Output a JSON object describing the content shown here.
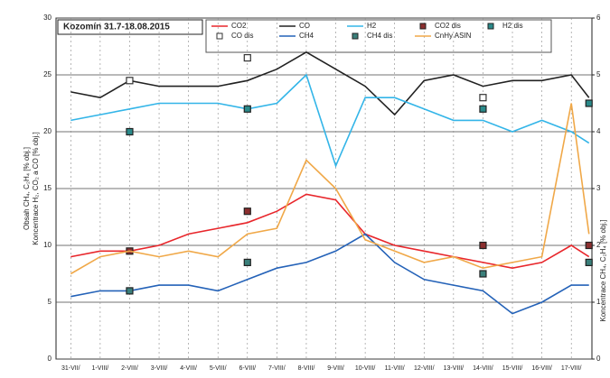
{
  "chart_data": {
    "type": "line",
    "title": "Kozomín 31.7-18.08.2015",
    "ylabel": "Koncentrace H₂, CO₂ a CO [% obj.]",
    "ylabel2": "Obsah CH₄, C₂H₄ [% obj.]",
    "y2label": "Koncentrace CH₄, C₂H₄ [% obj.]",
    "x": [
      0,
      1,
      2,
      3,
      4,
      5,
      6,
      7,
      8,
      9,
      10,
      11,
      12,
      13,
      14,
      15,
      16,
      17,
      17.6
    ],
    "xlim": [
      -0.5,
      17.7
    ],
    "xticks": [
      {
        "value": 0,
        "label": "31-VII/"
      },
      {
        "value": 1,
        "label": "1-VIII/"
      },
      {
        "value": 2,
        "label": "2-VIII/"
      },
      {
        "value": 3,
        "label": "3-VIII/"
      },
      {
        "value": 4,
        "label": "4-VIII/"
      },
      {
        "value": 5,
        "label": "5-VIII/"
      },
      {
        "value": 6,
        "label": "6-VIII/"
      },
      {
        "value": 7,
        "label": "7-VIII/"
      },
      {
        "value": 8,
        "label": "8-VIII/"
      },
      {
        "value": 9,
        "label": "9-VIII/"
      },
      {
        "value": 10,
        "label": "10-VIII/"
      },
      {
        "value": 11,
        "label": "11-VIII/"
      },
      {
        "value": 12,
        "label": "12-VIII/"
      },
      {
        "value": 13,
        "label": "13-VIII/"
      },
      {
        "value": 14,
        "label": "14-VIII/"
      },
      {
        "value": 15,
        "label": "15-VIII/"
      },
      {
        "value": 16,
        "label": "16-VIII/"
      },
      {
        "value": 17,
        "label": "17-VIII/"
      }
    ],
    "ylim": [
      0,
      30
    ],
    "yticks": [
      0,
      5,
      10,
      15,
      20,
      25,
      30
    ],
    "y2lim": [
      0,
      6
    ],
    "y2ticks": [
      0,
      1,
      2,
      3,
      4,
      5,
      6
    ],
    "grid": true,
    "series": [
      {
        "name": "CO2",
        "color": "#e8262b",
        "values": [
          9,
          9.5,
          9.5,
          10,
          11,
          11.5,
          12,
          13,
          14.5,
          14,
          11,
          10,
          9.5,
          9,
          8.5,
          8,
          8.5,
          10,
          9
        ]
      },
      {
        "name": "CO",
        "color": "#222222",
        "values": [
          23.5,
          23,
          24.5,
          24,
          24,
          24,
          24.5,
          25.5,
          27,
          25.5,
          24,
          21.5,
          24.5,
          25,
          24,
          24.5,
          24.5,
          25,
          23
        ]
      },
      {
        "name": "H2",
        "color": "#33b5e8",
        "values": [
          21,
          21.5,
          22,
          22.5,
          22.5,
          22.5,
          22,
          22.5,
          25,
          17,
          23,
          23,
          22,
          21,
          21,
          20,
          21,
          20,
          19
        ]
      },
      {
        "name": "CO2 dis",
        "color": "#8b2f2f",
        "marker": "square",
        "x": [
          2,
          6,
          14,
          17.6
        ],
        "values": [
          9.5,
          13,
          10,
          10
        ]
      },
      {
        "name": "H2 dis",
        "color": "#2a8a8a",
        "marker": "square",
        "x": [
          2,
          6,
          14,
          17.6
        ],
        "values": [
          20,
          22,
          22,
          22.5
        ]
      },
      {
        "name": "CO dis",
        "color": "#333333",
        "marker": "open-square",
        "x": [
          2,
          6,
          14
        ],
        "values": [
          24.5,
          26.5,
          23
        ]
      },
      {
        "name": "CH4",
        "color": "#2462b8",
        "axis": "y2",
        "values": [
          1.1,
          1.2,
          1.2,
          1.3,
          1.3,
          1.2,
          1.4,
          1.6,
          1.7,
          1.9,
          2.2,
          1.7,
          1.4,
          1.3,
          1.2,
          0.8,
          1,
          1.3,
          1.3
        ]
      },
      {
        "name": "CH4 dis",
        "color": "#3a7f7a",
        "marker": "square",
        "axis": "y2",
        "x": [
          2,
          6,
          14,
          17.6
        ],
        "values": [
          1.2,
          1.7,
          1.5,
          1.7
        ]
      },
      {
        "name": "CnHy ASIN",
        "color": "#f0a848",
        "axis": "y2",
        "values": [
          1.5,
          1.8,
          1.9,
          1.8,
          1.9,
          1.8,
          2.2,
          2.3,
          3.5,
          3,
          2.1,
          1.9,
          1.7,
          1.8,
          1.6,
          1.7,
          1.8,
          4.5,
          2.2
        ]
      }
    ]
  }
}
